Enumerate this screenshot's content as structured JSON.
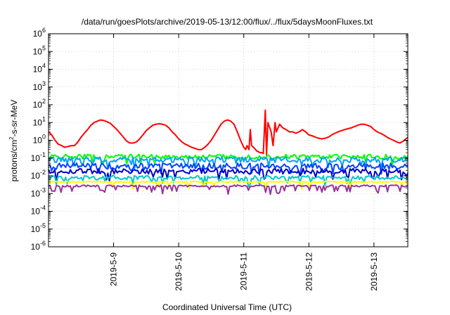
{
  "chart_data": {
    "type": "line",
    "title": "/data/run/goesPlots/archive/2019-05-13/12:00/flux/../flux/5daysMoonFluxes.txt",
    "xlabel": "Coordinated Universal Time (UTC)",
    "ylabel": {
      "prefix": "protons/cm",
      "sup": "2",
      "suffix": "-s-sr-MeV"
    },
    "yscale": "log",
    "ylim": [
      1e-06,
      1000000.0
    ],
    "y_ticks": [
      {
        "value": 1e-06,
        "base": "10",
        "exp": "-6"
      },
      {
        "value": 1e-05,
        "base": "10",
        "exp": "-5"
      },
      {
        "value": 0.0001,
        "base": "10",
        "exp": "-4"
      },
      {
        "value": 0.001,
        "base": "10",
        "exp": "-3"
      },
      {
        "value": 0.01,
        "base": "10",
        "exp": "-2"
      },
      {
        "value": 0.1,
        "base": "10",
        "exp": "-1"
      },
      {
        "value": 1,
        "base": "10",
        "exp": "0"
      },
      {
        "value": 10.0,
        "base": "10",
        "exp": "1"
      },
      {
        "value": 100.0,
        "base": "10",
        "exp": "2"
      },
      {
        "value": 1000.0,
        "base": "10",
        "exp": "3"
      },
      {
        "value": 10000.0,
        "base": "10",
        "exp": "4"
      },
      {
        "value": 100000.0,
        "base": "10",
        "exp": "5"
      },
      {
        "value": 1000000.0,
        "base": "10",
        "exp": "6"
      }
    ],
    "xlim": [
      8.0,
      13.52
    ],
    "x_ticks": [
      {
        "value": 9,
        "label": "2019-5-9"
      },
      {
        "value": 10,
        "label": "2019-5-10"
      },
      {
        "value": 11,
        "label": "2019-5-11"
      },
      {
        "value": 12,
        "label": "2019-5-12"
      },
      {
        "value": 13,
        "label": "2019-5-13"
      }
    ],
    "grid": true,
    "legend": "none",
    "series": [
      {
        "color": "#ff0000",
        "points": [
          [
            8.0,
            3
          ],
          [
            8.05,
            2
          ],
          [
            8.1,
            1
          ],
          [
            8.15,
            0.6
          ],
          [
            8.2,
            0.5
          ],
          [
            8.25,
            0.4
          ],
          [
            8.3,
            0.45
          ],
          [
            8.35,
            0.5
          ],
          [
            8.4,
            0.5
          ],
          [
            8.45,
            0.8
          ],
          [
            8.5,
            1.5
          ],
          [
            8.55,
            2.5
          ],
          [
            8.6,
            4
          ],
          [
            8.65,
            7
          ],
          [
            8.7,
            10
          ],
          [
            8.75,
            12
          ],
          [
            8.8,
            14
          ],
          [
            8.85,
            13
          ],
          [
            8.9,
            11
          ],
          [
            8.95,
            9
          ],
          [
            9.0,
            6
          ],
          [
            9.05,
            4
          ],
          [
            9.1,
            2.5
          ],
          [
            9.15,
            1.5
          ],
          [
            9.2,
            0.9
          ],
          [
            9.25,
            0.7
          ],
          [
            9.3,
            0.7
          ],
          [
            9.35,
            0.8
          ],
          [
            9.4,
            1.2
          ],
          [
            9.45,
            2
          ],
          [
            9.5,
            3.5
          ],
          [
            9.55,
            5
          ],
          [
            9.6,
            7
          ],
          [
            9.65,
            8
          ],
          [
            9.7,
            8.5
          ],
          [
            9.75,
            8
          ],
          [
            9.8,
            7
          ],
          [
            9.85,
            5
          ],
          [
            9.9,
            3
          ],
          [
            9.95,
            2
          ],
          [
            10.0,
            1.2
          ],
          [
            10.05,
            0.8
          ],
          [
            10.1,
            0.6
          ],
          [
            10.15,
            0.5
          ],
          [
            10.2,
            0.4
          ],
          [
            10.25,
            0.35
          ],
          [
            10.3,
            0.3
          ],
          [
            10.35,
            0.3
          ],
          [
            10.4,
            0.4
          ],
          [
            10.45,
            0.6
          ],
          [
            10.5,
            1
          ],
          [
            10.55,
            2
          ],
          [
            10.6,
            4
          ],
          [
            10.65,
            8
          ],
          [
            10.7,
            12
          ],
          [
            10.75,
            14
          ],
          [
            10.8,
            12
          ],
          [
            10.85,
            8
          ],
          [
            10.9,
            3
          ],
          [
            10.95,
            1
          ],
          [
            11.0,
            0.4
          ],
          [
            11.03,
            0.3
          ],
          [
            11.05,
            0.5
          ],
          [
            11.08,
            0.3
          ],
          [
            11.1,
            4
          ],
          [
            11.12,
            0.5
          ],
          [
            11.15,
            0.4
          ],
          [
            11.18,
            0.3
          ],
          [
            11.2,
            0.25
          ],
          [
            11.25,
            0.2
          ],
          [
            11.28,
            0.2
          ],
          [
            11.3,
            0.18
          ],
          [
            11.33,
            50
          ],
          [
            11.35,
            0.15
          ],
          [
            11.37,
            10
          ],
          [
            11.4,
            5
          ],
          [
            11.42,
            3
          ],
          [
            11.45,
            0.5
          ],
          [
            11.48,
            10
          ],
          [
            11.5,
            3
          ],
          [
            11.55,
            8
          ],
          [
            11.6,
            5
          ],
          [
            11.65,
            4
          ],
          [
            11.7,
            3
          ],
          [
            11.75,
            3
          ],
          [
            11.8,
            2.5
          ],
          [
            11.85,
            3
          ],
          [
            11.9,
            4
          ],
          [
            11.95,
            3
          ],
          [
            12.0,
            2
          ],
          [
            12.05,
            1.8
          ],
          [
            12.1,
            1.5
          ],
          [
            12.15,
            1.3
          ],
          [
            12.2,
            1.2
          ],
          [
            12.25,
            1.3
          ],
          [
            12.3,
            1.5
          ],
          [
            12.35,
            2
          ],
          [
            12.4,
            2.5
          ],
          [
            12.45,
            3
          ],
          [
            12.5,
            3.5
          ],
          [
            12.55,
            4
          ],
          [
            12.6,
            4.5
          ],
          [
            12.65,
            5
          ],
          [
            12.7,
            6
          ],
          [
            12.75,
            7
          ],
          [
            12.8,
            8
          ],
          [
            12.85,
            8
          ],
          [
            12.9,
            7
          ],
          [
            12.95,
            6
          ],
          [
            13.0,
            4
          ],
          [
            13.05,
            3
          ],
          [
            13.1,
            2.5
          ],
          [
            13.15,
            2
          ],
          [
            13.2,
            1.5
          ],
          [
            13.25,
            1.2
          ],
          [
            13.3,
            1
          ],
          [
            13.35,
            0.8
          ],
          [
            13.4,
            0.7
          ],
          [
            13.45,
            0.9
          ],
          [
            13.52,
            1.5
          ]
        ]
      },
      {
        "color": "#00ff00",
        "base": 0.12,
        "amp": 0.3,
        "dips": 0.05
      },
      {
        "color": "#00a0ff",
        "base": 0.08,
        "amp": 0.35,
        "dips": 0.06
      },
      {
        "color": "#0044ff",
        "base": 0.035,
        "amp": 0.4,
        "dips": 0.08
      },
      {
        "color": "#0000c8",
        "base": 0.018,
        "amp": 0.35,
        "dips": 0.1
      },
      {
        "color": "#00c8c8",
        "base": 0.008,
        "amp": 0.25,
        "dips": 0.12
      },
      {
        "color": "#ffff00",
        "base": 0.0045,
        "amp": 0.08,
        "dips": 0.03
      },
      {
        "color": "#993399",
        "base": 0.0027,
        "amp": 0.12,
        "dips": 0.2
      }
    ]
  }
}
